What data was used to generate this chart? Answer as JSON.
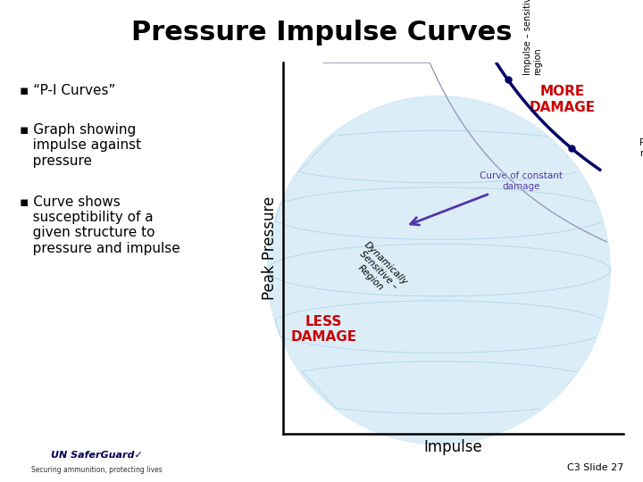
{
  "title": "Pressure Impulse Curves",
  "title_fontsize": 22,
  "title_fontweight": "bold",
  "bg_color": "#ffffff",
  "bullet_fontsize": 11,
  "more_damage_color": "#cc0000",
  "less_damage_color": "#cc0000",
  "curve_color": "#000066",
  "annotation_color": "#5533aa",
  "xlabel": "Impulse",
  "ylabel": "Peak Pressure",
  "slide_ref": "C3 Slide 27",
  "watermark_color": "#cde8f5",
  "impulse_sensitive_label": "Impulse – sensitive\nregion",
  "pressure_sensitive_label": "Pressure – sensitive\nregion",
  "dynamically_sensitive_label": "Dynamically\nSensitive –\nRegion",
  "curve_of_constant_label": "Curve of constant\ndamage",
  "more_damage_label": "MORE\nDAMAGE",
  "less_damage_label": "LESS\nDAMAGE"
}
